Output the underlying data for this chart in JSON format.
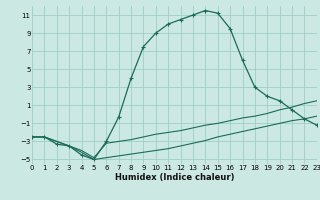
{
  "xlabel": "Humidex (Indice chaleur)",
  "bg_color": "#cce8e2",
  "grid_color": "#9ecec6",
  "line_color": "#1a6b5a",
  "xlim": [
    0,
    23
  ],
  "ylim": [
    -5.5,
    12.0
  ],
  "xticks": [
    0,
    1,
    2,
    3,
    4,
    5,
    6,
    7,
    8,
    9,
    10,
    11,
    12,
    13,
    14,
    15,
    16,
    17,
    18,
    19,
    20,
    21,
    22,
    23
  ],
  "yticks": [
    -5,
    -3,
    -1,
    1,
    3,
    5,
    7,
    9,
    11
  ],
  "curve1_x": [
    0,
    1,
    2,
    3,
    4,
    5,
    6,
    7,
    8,
    9,
    10,
    11,
    12,
    13,
    14,
    15,
    16,
    17,
    18,
    19,
    20,
    21,
    22,
    23
  ],
  "curve1_y": [
    -2.5,
    -2.5,
    -3.3,
    -3.5,
    -4.5,
    -5.0,
    -3.0,
    -0.3,
    4.0,
    7.5,
    9.0,
    10.0,
    10.5,
    11.0,
    11.5,
    11.2,
    9.5,
    6.0,
    3.0,
    2.0,
    1.5,
    0.5,
    -0.5,
    -1.2
  ],
  "curve2_x": [
    0,
    1,
    2,
    3,
    4,
    5,
    6,
    7,
    8,
    9,
    10,
    11,
    12,
    13,
    14,
    15,
    16,
    17,
    18,
    19,
    20,
    21,
    22,
    23
  ],
  "curve2_y": [
    -2.5,
    -2.5,
    -3.0,
    -3.5,
    -4.0,
    -4.8,
    -3.2,
    -3.0,
    -2.8,
    -2.5,
    -2.2,
    -2.0,
    -1.8,
    -1.5,
    -1.2,
    -1.0,
    -0.7,
    -0.4,
    -0.2,
    0.1,
    0.5,
    0.8,
    1.2,
    1.5
  ],
  "curve3_x": [
    0,
    1,
    2,
    3,
    4,
    5,
    6,
    7,
    8,
    9,
    10,
    11,
    12,
    13,
    14,
    15,
    16,
    17,
    18,
    19,
    20,
    21,
    22,
    23
  ],
  "curve3_y": [
    -2.5,
    -2.5,
    -3.0,
    -3.5,
    -4.2,
    -5.0,
    -4.8,
    -4.6,
    -4.4,
    -4.2,
    -4.0,
    -3.8,
    -3.5,
    -3.2,
    -2.9,
    -2.5,
    -2.2,
    -1.9,
    -1.6,
    -1.3,
    -1.0,
    -0.7,
    -0.5,
    -0.2
  ]
}
